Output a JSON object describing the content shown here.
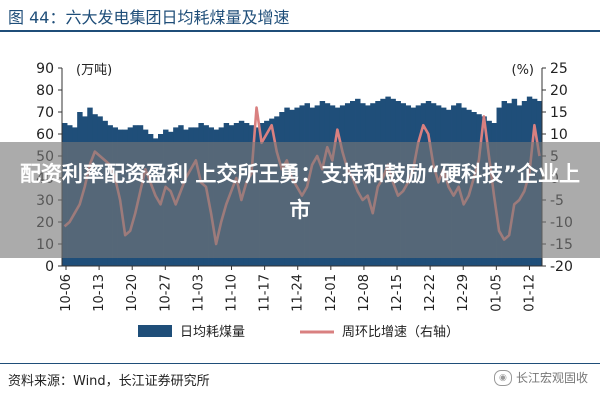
{
  "figure_title": "图 44：六大发电集团日均耗煤量及增速",
  "overlay_headline": "配资利率配资盈利 上交所王勇：支持和鼓励“硬科技”企业上市",
  "source_text": "资料来源：Wind，长江证券研究所",
  "watermark_text": "长江宏观固收",
  "colors": {
    "bar": "#1f4e79",
    "line": "#d98080",
    "title": "#1f4e79"
  },
  "chart_data": {
    "type": "bar+line",
    "left_axis_label": "(万吨)",
    "right_axis_label": "(%)",
    "ylim_left": [
      0,
      90
    ],
    "ylim_right": [
      -20,
      25
    ],
    "yticks_left": [
      "90",
      "80",
      "70",
      "60",
      "50",
      "40",
      "30",
      "20",
      "10",
      "0"
    ],
    "yticks_right": [
      "25",
      "20",
      "15",
      "10",
      "5",
      "0",
      "-5",
      "-10",
      "-15",
      "-20"
    ],
    "xticks": [
      "10-06",
      "10-13",
      "10-20",
      "10-27",
      "11-03",
      "11-10",
      "11-17",
      "11-24",
      "12-01",
      "12-08",
      "12-15",
      "12-22",
      "12-29",
      "01-05",
      "01-12"
    ],
    "grid": false,
    "legend_placement": "bottom",
    "series": [
      {
        "name": "日均耗煤量",
        "kind": "bar",
        "axis": "left",
        "values": [
          65,
          64,
          63,
          70,
          68,
          72,
          69,
          68,
          66,
          64,
          63,
          62,
          62,
          63,
          64,
          64,
          62,
          60,
          58,
          60,
          62,
          61,
          63,
          64,
          62,
          63,
          63,
          65,
          64,
          63,
          62,
          63,
          65,
          64,
          65,
          66,
          65,
          64,
          63,
          65,
          66,
          67,
          68,
          70,
          72,
          71,
          72,
          73,
          74,
          72,
          73,
          75,
          74,
          73,
          72,
          73,
          74,
          75,
          76,
          74,
          73,
          74,
          75,
          76,
          77,
          76,
          75,
          74,
          73,
          72,
          73,
          74,
          75,
          74,
          73,
          72,
          71,
          73,
          74,
          72,
          71,
          70,
          69,
          68,
          66,
          65,
          72,
          75,
          74,
          76,
          73,
          75,
          77,
          76,
          75
        ]
      },
      {
        "name": "周环比增速（右轴）",
        "kind": "line",
        "axis": "right",
        "values": [
          -11,
          -10,
          -8,
          -6,
          -2,
          3,
          6,
          5,
          4,
          3,
          0,
          -5,
          -13,
          -12,
          -8,
          -3,
          2,
          -1,
          -4,
          -6,
          -2,
          -3,
          -6,
          -3,
          0,
          2,
          4,
          -1,
          -2,
          -8,
          -15,
          -10,
          -6,
          -3,
          0,
          -5,
          -1,
          1,
          16,
          8,
          10,
          12,
          6,
          2,
          4,
          0,
          -2,
          -4,
          -2,
          3,
          5,
          2,
          7,
          4,
          11,
          6,
          2,
          0,
          -3,
          -5,
          -4,
          -8,
          -2,
          0,
          3,
          -1,
          -4,
          -3,
          -1,
          2,
          8,
          12,
          10,
          3,
          -1,
          2,
          -2,
          -4,
          -2,
          -6,
          -4,
          0,
          4,
          14,
          5,
          -4,
          -12,
          -14,
          -13,
          -6,
          -5,
          -3,
          1,
          12,
          5
        ]
      }
    ]
  }
}
